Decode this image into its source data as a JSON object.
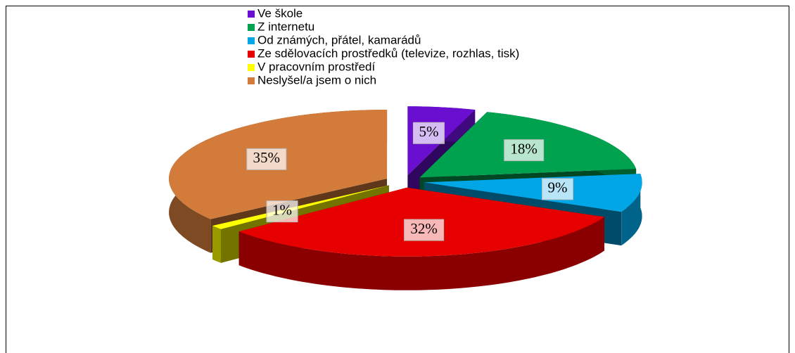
{
  "chart_data": {
    "type": "pie3d",
    "categories": [
      "Ve škole",
      "Z internetu",
      "Od známých, přátel, kamarádů",
      "Ze sdělovacích prostředků (televize, rozhlas, tisk)",
      "V pracovním prostředí",
      "Neslyšel/a jsem o nich"
    ],
    "values": [
      5,
      18,
      9,
      32,
      1,
      35
    ],
    "value_labels": [
      "5%",
      "18%",
      "9%",
      "32%",
      "1%",
      "35%"
    ],
    "colors": [
      "#6a0fd0",
      "#00a14f",
      "#00a6e6",
      "#e60000",
      "#ffff00",
      "#d27b3a"
    ]
  }
}
